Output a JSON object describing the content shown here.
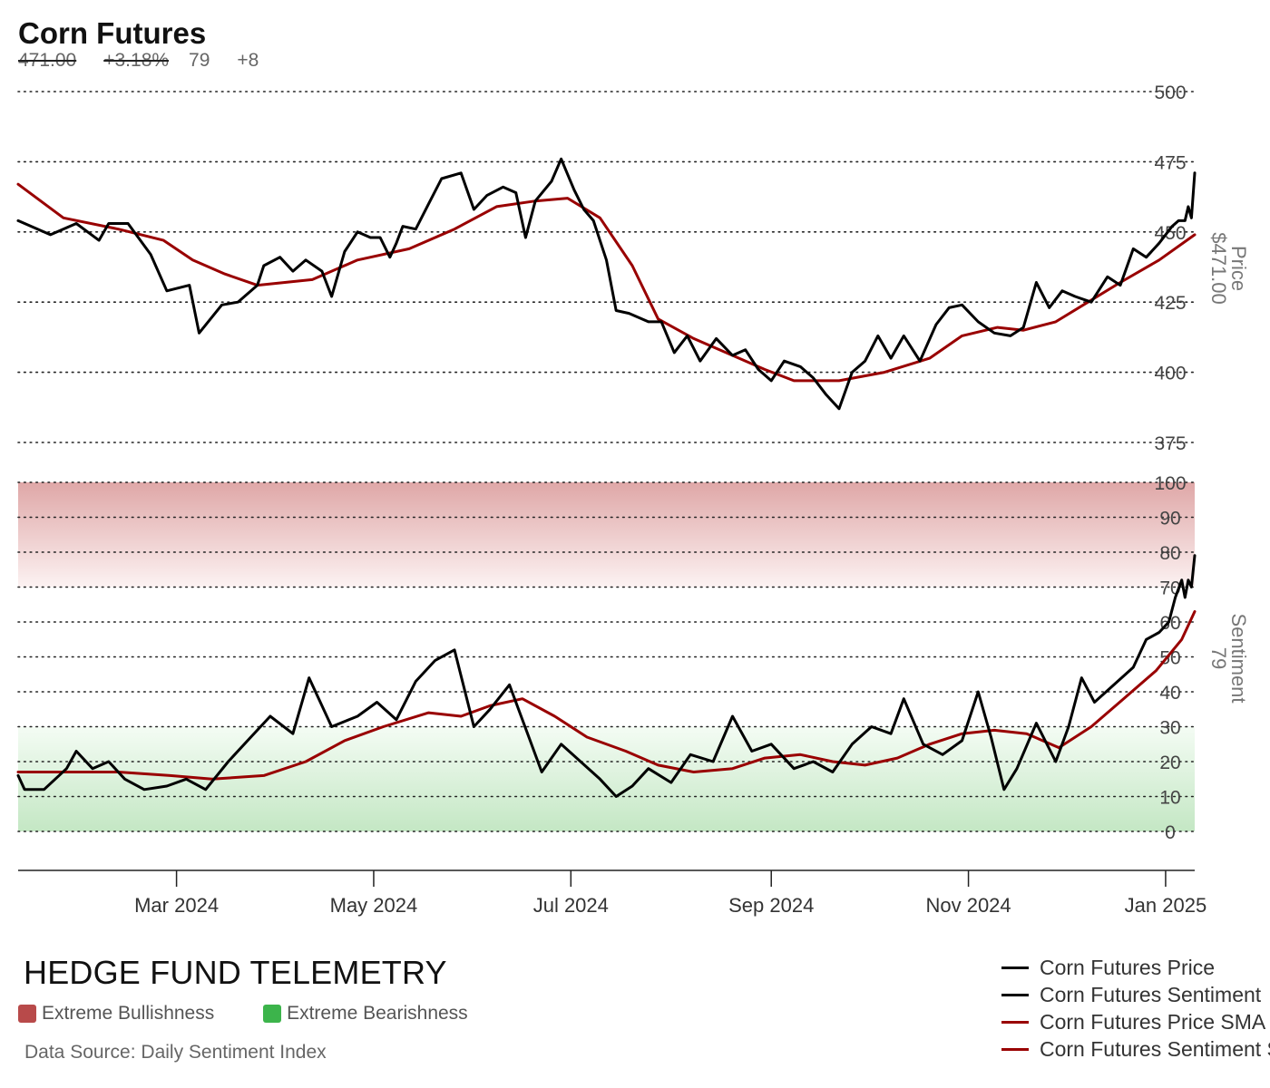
{
  "header": {
    "title": "Corn Futures",
    "price": "471.00",
    "change": "+3.18%",
    "sentiment": "79",
    "sentiment_change": "+8"
  },
  "brand": "HEDGE FUND TELEMETRY",
  "zones": [
    {
      "label": "Extreme Bullishness",
      "color": "#b84a4a"
    },
    {
      "label": "Extreme Bearishness",
      "color": "#3cb44b"
    }
  ],
  "source": "Data Source: Daily Sentiment Index",
  "legend": [
    {
      "label": "Corn Futures Price",
      "color": "#000000"
    },
    {
      "label": "Corn Futures Sentiment",
      "color": "#000000"
    },
    {
      "label": "Corn Futures Price SMA",
      "color": "#990000"
    },
    {
      "label": "Corn Futures Sentiment SMA",
      "color": "#990000"
    }
  ],
  "chart_data": {
    "type": "line",
    "x_ticks": [
      "Mar 2024",
      "May 2024",
      "Jul 2024",
      "Sep 2024",
      "Nov 2024",
      "Jan 2025"
    ],
    "x_tick_dates": [
      "2024-03-01",
      "2024-05-01",
      "2024-07-01",
      "2024-09-01",
      "2024-11-01",
      "2025-01-01"
    ],
    "x_range": [
      "2024-01-12",
      "2025-01-10"
    ],
    "price_panel": {
      "ylabel": "Price",
      "ylabel_value": "$471.00",
      "ylim": [
        375,
        500
      ],
      "yticks": [
        "500",
        "475",
        "450",
        "425",
        "400",
        "375"
      ],
      "price_series": {
        "name": "Corn Futures Price",
        "color": "#000000",
        "points": [
          [
            "2024-01-12",
            454
          ],
          [
            "2024-01-22",
            449
          ],
          [
            "2024-01-30",
            453
          ],
          [
            "2024-02-06",
            447
          ],
          [
            "2024-02-09",
            453
          ],
          [
            "2024-02-15",
            453
          ],
          [
            "2024-02-22",
            442
          ],
          [
            "2024-02-27",
            429
          ],
          [
            "2024-03-05",
            431
          ],
          [
            "2024-03-08",
            414
          ],
          [
            "2024-03-15",
            424
          ],
          [
            "2024-03-20",
            425
          ],
          [
            "2024-03-26",
            431
          ],
          [
            "2024-03-28",
            438
          ],
          [
            "2024-04-02",
            441
          ],
          [
            "2024-04-06",
            436
          ],
          [
            "2024-04-10",
            440
          ],
          [
            "2024-04-15",
            436
          ],
          [
            "2024-04-18",
            427
          ],
          [
            "2024-04-22",
            443
          ],
          [
            "2024-04-26",
            450
          ],
          [
            "2024-04-30",
            448
          ],
          [
            "2024-05-03",
            448
          ],
          [
            "2024-05-06",
            441
          ],
          [
            "2024-05-08",
            446
          ],
          [
            "2024-05-10",
            452
          ],
          [
            "2024-05-14",
            451
          ],
          [
            "2024-05-18",
            460
          ],
          [
            "2024-05-22",
            469
          ],
          [
            "2024-05-28",
            471
          ],
          [
            "2024-06-01",
            458
          ],
          [
            "2024-06-05",
            463
          ],
          [
            "2024-06-10",
            466
          ],
          [
            "2024-06-14",
            464
          ],
          [
            "2024-06-17",
            448
          ],
          [
            "2024-06-20",
            461
          ],
          [
            "2024-06-25",
            468
          ],
          [
            "2024-06-28",
            476
          ],
          [
            "2024-07-02",
            465
          ],
          [
            "2024-07-05",
            458
          ],
          [
            "2024-07-08",
            454
          ],
          [
            "2024-07-12",
            440
          ],
          [
            "2024-07-15",
            422
          ],
          [
            "2024-07-19",
            421
          ],
          [
            "2024-07-25",
            418
          ],
          [
            "2024-07-29",
            418
          ],
          [
            "2024-08-02",
            407
          ],
          [
            "2024-08-06",
            413
          ],
          [
            "2024-08-10",
            404
          ],
          [
            "2024-08-15",
            412
          ],
          [
            "2024-08-20",
            406
          ],
          [
            "2024-08-24",
            408
          ],
          [
            "2024-08-28",
            401
          ],
          [
            "2024-09-01",
            397
          ],
          [
            "2024-09-05",
            404
          ],
          [
            "2024-09-10",
            402
          ],
          [
            "2024-09-14",
            398
          ],
          [
            "2024-09-18",
            392
          ],
          [
            "2024-09-22",
            387
          ],
          [
            "2024-09-26",
            400
          ],
          [
            "2024-09-30",
            404
          ],
          [
            "2024-10-04",
            413
          ],
          [
            "2024-10-08",
            405
          ],
          [
            "2024-10-12",
            413
          ],
          [
            "2024-10-17",
            404
          ],
          [
            "2024-10-22",
            417
          ],
          [
            "2024-10-26",
            423
          ],
          [
            "2024-10-30",
            424
          ],
          [
            "2024-11-04",
            418
          ],
          [
            "2024-11-09",
            414
          ],
          [
            "2024-11-14",
            413
          ],
          [
            "2024-11-18",
            416
          ],
          [
            "2024-11-22",
            432
          ],
          [
            "2024-11-26",
            423
          ],
          [
            "2024-11-30",
            429
          ],
          [
            "2024-12-04",
            427
          ],
          [
            "2024-12-09",
            425
          ],
          [
            "2024-12-14",
            434
          ],
          [
            "2024-12-18",
            431
          ],
          [
            "2024-12-22",
            444
          ],
          [
            "2024-12-26",
            441
          ],
          [
            "2024-12-30",
            446
          ],
          [
            "2025-01-03",
            452
          ],
          [
            "2025-01-05",
            454
          ],
          [
            "2025-01-07",
            454
          ],
          [
            "2025-01-08",
            459
          ],
          [
            "2025-01-09",
            455
          ],
          [
            "2025-01-10",
            471
          ]
        ]
      },
      "sma_series": {
        "name": "Corn Futures Price SMA",
        "color": "#990000",
        "points": [
          [
            "2024-01-12",
            467
          ],
          [
            "2024-01-26",
            455
          ],
          [
            "2024-02-12",
            451
          ],
          [
            "2024-02-26",
            447
          ],
          [
            "2024-03-06",
            440
          ],
          [
            "2024-03-16",
            435
          ],
          [
            "2024-03-26",
            431
          ],
          [
            "2024-04-12",
            433
          ],
          [
            "2024-04-26",
            440
          ],
          [
            "2024-05-12",
            444
          ],
          [
            "2024-05-26",
            451
          ],
          [
            "2024-06-08",
            459
          ],
          [
            "2024-06-20",
            461
          ],
          [
            "2024-06-30",
            462
          ],
          [
            "2024-07-10",
            455
          ],
          [
            "2024-07-20",
            438
          ],
          [
            "2024-07-28",
            419
          ],
          [
            "2024-08-08",
            412
          ],
          [
            "2024-08-20",
            406
          ],
          [
            "2024-08-30",
            401
          ],
          [
            "2024-09-08",
            397
          ],
          [
            "2024-09-22",
            397
          ],
          [
            "2024-10-06",
            400
          ],
          [
            "2024-10-20",
            405
          ],
          [
            "2024-10-30",
            413
          ],
          [
            "2024-11-10",
            416
          ],
          [
            "2024-11-18",
            415
          ],
          [
            "2024-11-28",
            418
          ],
          [
            "2024-12-08",
            425
          ],
          [
            "2024-12-18",
            432
          ],
          [
            "2024-12-30",
            440
          ],
          [
            "2025-01-10",
            449
          ]
        ]
      }
    },
    "sentiment_panel": {
      "ylabel": "Sentiment",
      "ylabel_value": "79",
      "ylim": [
        0,
        100
      ],
      "yticks": [
        "100",
        "90",
        "80",
        "70",
        "60",
        "50",
        "40",
        "30",
        "20",
        "10",
        "0"
      ],
      "extreme_bullish_band": [
        70,
        100
      ],
      "extreme_bearish_band": [
        0,
        30
      ],
      "sentiment_series": {
        "name": "Corn Futures Sentiment",
        "color": "#000000",
        "points": [
          [
            "2024-01-12",
            16
          ],
          [
            "2024-01-14",
            12
          ],
          [
            "2024-01-20",
            12
          ],
          [
            "2024-01-27",
            18
          ],
          [
            "2024-01-30",
            23
          ],
          [
            "2024-02-04",
            18
          ],
          [
            "2024-02-09",
            20
          ],
          [
            "2024-02-14",
            15
          ],
          [
            "2024-02-20",
            12
          ],
          [
            "2024-02-27",
            13
          ],
          [
            "2024-03-04",
            15
          ],
          [
            "2024-03-10",
            12
          ],
          [
            "2024-03-17",
            20
          ],
          [
            "2024-03-24",
            27
          ],
          [
            "2024-03-30",
            33
          ],
          [
            "2024-04-06",
            28
          ],
          [
            "2024-04-11",
            44
          ],
          [
            "2024-04-18",
            30
          ],
          [
            "2024-04-26",
            33
          ],
          [
            "2024-05-02",
            37
          ],
          [
            "2024-05-08",
            32
          ],
          [
            "2024-05-14",
            43
          ],
          [
            "2024-05-20",
            49
          ],
          [
            "2024-05-26",
            52
          ],
          [
            "2024-06-01",
            30
          ],
          [
            "2024-06-06",
            35
          ],
          [
            "2024-06-12",
            42
          ],
          [
            "2024-06-18",
            27
          ],
          [
            "2024-06-22",
            17
          ],
          [
            "2024-06-28",
            25
          ],
          [
            "2024-07-04",
            20
          ],
          [
            "2024-07-10",
            15
          ],
          [
            "2024-07-15",
            10
          ],
          [
            "2024-07-20",
            13
          ],
          [
            "2024-07-25",
            18
          ],
          [
            "2024-08-01",
            14
          ],
          [
            "2024-08-07",
            22
          ],
          [
            "2024-08-14",
            20
          ],
          [
            "2024-08-20",
            33
          ],
          [
            "2024-08-26",
            23
          ],
          [
            "2024-09-01",
            25
          ],
          [
            "2024-09-08",
            18
          ],
          [
            "2024-09-14",
            20
          ],
          [
            "2024-09-20",
            17
          ],
          [
            "2024-09-26",
            25
          ],
          [
            "2024-10-02",
            30
          ],
          [
            "2024-10-08",
            28
          ],
          [
            "2024-10-12",
            38
          ],
          [
            "2024-10-18",
            25
          ],
          [
            "2024-10-24",
            22
          ],
          [
            "2024-10-30",
            26
          ],
          [
            "2024-11-04",
            40
          ],
          [
            "2024-11-08",
            27
          ],
          [
            "2024-11-12",
            12
          ],
          [
            "2024-11-16",
            18
          ],
          [
            "2024-11-22",
            31
          ],
          [
            "2024-11-28",
            20
          ],
          [
            "2024-12-02",
            30
          ],
          [
            "2024-12-06",
            44
          ],
          [
            "2024-12-10",
            37
          ],
          [
            "2024-12-16",
            42
          ],
          [
            "2024-12-22",
            47
          ],
          [
            "2024-12-26",
            55
          ],
          [
            "2024-12-30",
            57
          ],
          [
            "2025-01-02",
            60
          ],
          [
            "2025-01-04",
            67
          ],
          [
            "2025-01-06",
            72
          ],
          [
            "2025-01-07",
            67
          ],
          [
            "2025-01-08",
            72
          ],
          [
            "2025-01-09",
            70
          ],
          [
            "2025-01-10",
            79
          ]
        ]
      },
      "sma_series": {
        "name": "Corn Futures Sentiment SMA",
        "color": "#990000",
        "points": [
          [
            "2024-01-12",
            17
          ],
          [
            "2024-01-28",
            17
          ],
          [
            "2024-02-12",
            17
          ],
          [
            "2024-02-28",
            16
          ],
          [
            "2024-03-12",
            15
          ],
          [
            "2024-03-28",
            16
          ],
          [
            "2024-04-10",
            20
          ],
          [
            "2024-04-22",
            26
          ],
          [
            "2024-05-04",
            30
          ],
          [
            "2024-05-18",
            34
          ],
          [
            "2024-05-28",
            33
          ],
          [
            "2024-06-06",
            36
          ],
          [
            "2024-06-16",
            38
          ],
          [
            "2024-06-26",
            33
          ],
          [
            "2024-07-06",
            27
          ],
          [
            "2024-07-18",
            23
          ],
          [
            "2024-07-28",
            19
          ],
          [
            "2024-08-08",
            17
          ],
          [
            "2024-08-20",
            18
          ],
          [
            "2024-08-30",
            21
          ],
          [
            "2024-09-10",
            22
          ],
          [
            "2024-09-20",
            20
          ],
          [
            "2024-09-30",
            19
          ],
          [
            "2024-10-10",
            21
          ],
          [
            "2024-10-20",
            25
          ],
          [
            "2024-10-30",
            28
          ],
          [
            "2024-11-09",
            29
          ],
          [
            "2024-11-19",
            28
          ],
          [
            "2024-11-29",
            24
          ],
          [
            "2024-12-09",
            30
          ],
          [
            "2024-12-19",
            38
          ],
          [
            "2024-12-29",
            46
          ],
          [
            "2025-01-06",
            55
          ],
          [
            "2025-01-10",
            63
          ]
        ]
      }
    }
  }
}
